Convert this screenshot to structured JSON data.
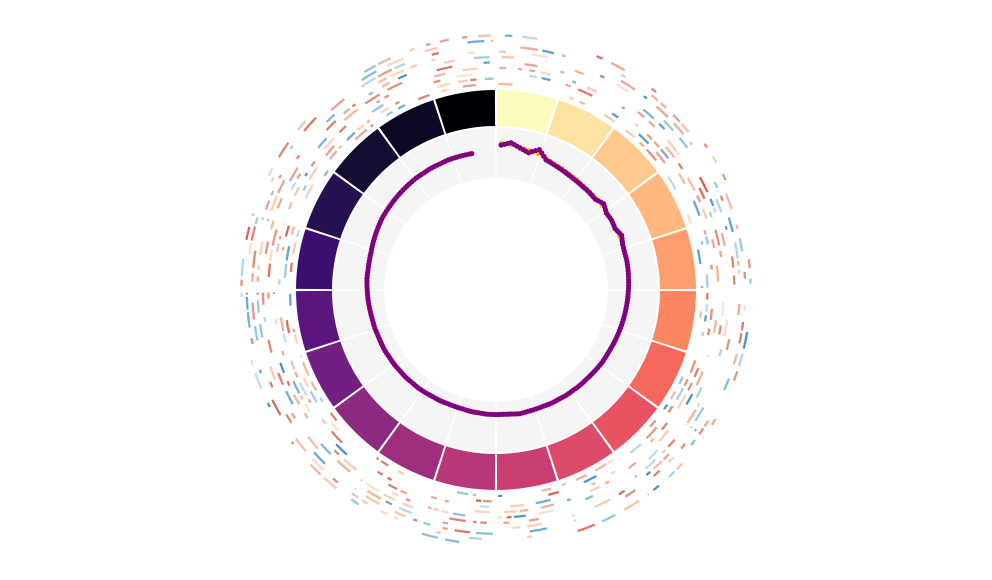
{
  "chart_data": {
    "type": "circos",
    "title": "",
    "ideogram": {
      "segments": 20,
      "colormap": "magma",
      "colors": [
        "#fbfbbe",
        "#fde2a2",
        "#fec98c",
        "#feb77e",
        "#fd9f6c",
        "#fb8761",
        "#f4695c",
        "#e85362",
        "#dc4b6b",
        "#cb3e73",
        "#b73779",
        "#9e2f7f",
        "#8c2981",
        "#721f81",
        "#5a167e",
        "#3b0f70",
        "#251255",
        "#120d31",
        "#0b0924",
        "#000004"
      ]
    },
    "scatter_track": {
      "background": "#f5f5f5",
      "series": [
        {
          "color": "#ffa500",
          "values": [
            0.7,
            0.68,
            0.66,
            0.63,
            0.61,
            0.58,
            0.55,
            0.53,
            0.51,
            0.5,
            0.49,
            0.48,
            0.48,
            0.47,
            0.47,
            0.46,
            0.46,
            0.45,
            0.45,
            0.45,
            0.44,
            0.44,
            0.43,
            0.42,
            0.41,
            0.4,
            0.39,
            0.38,
            0.37,
            0.36,
            0.35,
            0.34,
            0.34,
            0.33,
            0.32,
            0.31,
            0.31,
            0.3,
            0.3,
            0.29,
            0.29,
            0.28,
            0.28,
            0.27,
            0.27,
            0.27,
            0.26,
            0.26,
            0.25,
            0.25,
            0.25,
            0.24,
            0.24,
            0.24,
            0.25,
            0.25,
            0.26,
            0.27,
            0.27,
            0.28,
            0.28,
            0.29,
            0.29,
            0.3,
            0.3,
            0.3,
            0.31,
            0.31,
            0.32,
            0.33,
            0.34,
            0.35,
            0.36,
            0.36,
            0.37,
            0.38,
            0.4,
            0.42,
            0.44,
            0.46,
            0.47,
            0.48,
            0.49,
            0.5,
            0.51,
            0.52,
            0.52,
            0.53,
            0.53,
            0.54,
            0.54,
            0.54
          ]
        },
        {
          "color": "#800080",
          "values": [
            0.66,
            0.72,
            0.64,
            0.58,
            0.7,
            0.55,
            0.52,
            0.5,
            0.48,
            0.47,
            0.46,
            0.46,
            0.45,
            0.52,
            0.45,
            0.46,
            0.44,
            0.5,
            0.45,
            0.44,
            0.44,
            0.43,
            0.42,
            0.41,
            0.4,
            0.39,
            0.38,
            0.37,
            0.36,
            0.35,
            0.34,
            0.33,
            0.33,
            0.32,
            0.31,
            0.3,
            0.3,
            0.29,
            0.29,
            0.28,
            0.28,
            0.27,
            0.27,
            0.27,
            0.28,
            0.26,
            0.25,
            0.25,
            0.25,
            0.24,
            0.24,
            0.23,
            0.23,
            0.23,
            0.24,
            0.24,
            0.25,
            0.26,
            0.26,
            0.27,
            0.27,
            0.28,
            0.28,
            0.29,
            0.29,
            0.29,
            0.3,
            0.3,
            0.31,
            0.32,
            0.33,
            0.34,
            0.35,
            0.35,
            0.36,
            0.37,
            0.39,
            0.41,
            0.43,
            0.45,
            0.46,
            0.47,
            0.48,
            0.49,
            0.5,
            0.51,
            0.51,
            0.52,
            0.52,
            0.53,
            0.53,
            0.53
          ]
        }
      ]
    },
    "outer_tracks": {
      "rings": 10,
      "palette": [
        "#d6604d",
        "#e08368",
        "#f4a582",
        "#fbc9ad",
        "#92c5de",
        "#4393c3"
      ]
    }
  }
}
